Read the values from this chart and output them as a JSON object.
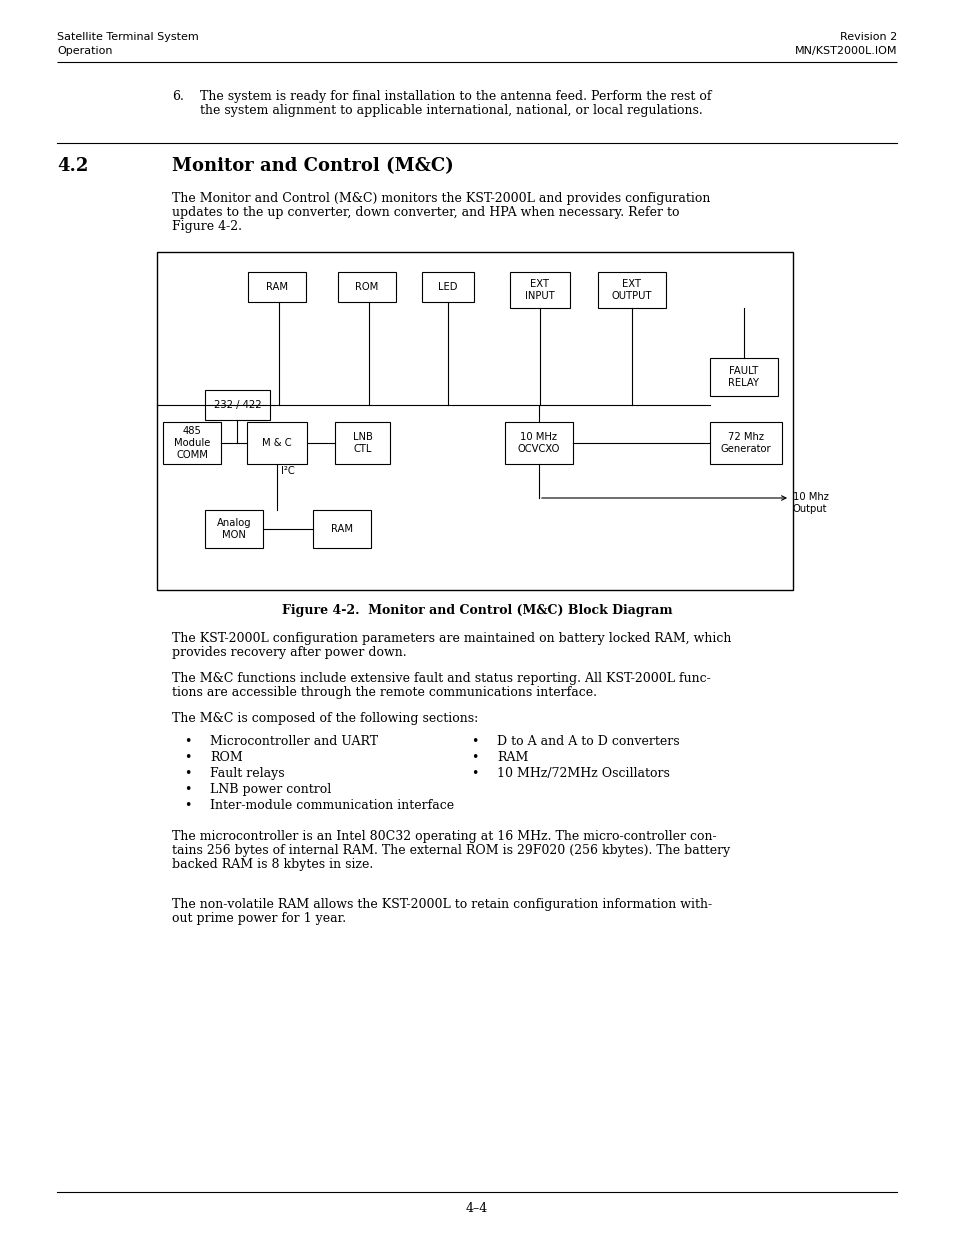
{
  "header_left_line1": "Satellite Terminal System",
  "header_left_line2": "Operation",
  "header_right_line1": "Revision 2",
  "header_right_line2": "MN/KST2000L.IOM",
  "section_num": "4.2",
  "section_title": "Monitor and Control (M&C)",
  "intro_text_1": "The Monitor and Control (M&C) monitors the KST-2000L and provides configuration",
  "intro_text_2": "updates to the up converter, down converter, and HPA when necessary. Refer to",
  "intro_text_3": "Figure 4-2.",
  "fig_caption": "Figure 4-2.  Monitor and Control (M&C) Block Diagram",
  "item6_line1": "The system is ready for final installation to the antenna feed. Perform the rest of",
  "item6_line2": "the system alignment to applicable international, national, or local regulations.",
  "para1_1": "The KST-2000L configuration parameters are maintained on battery locked RAM, which",
  "para1_2": "provides recovery after power down.",
  "para2_1": "The M&C functions include extensive fault and status reporting. All KST-2000L func-",
  "para2_2": "tions are accessible through the remote communications interface.",
  "para3": "The M&C is composed of the following sections:",
  "bullets_left": [
    "Microcontroller and UART",
    "ROM",
    "Fault relays",
    "LNB power control",
    "Inter-module communication interface"
  ],
  "bullets_right": [
    "D to A and A to D converters",
    "RAM",
    "10 MHz/72MHz Oscillators"
  ],
  "para4_1": "The microcontroller is an Intel 80C32 operating at 16 MHz. The micro-controller con-",
  "para4_2": "tains 256 bytes of internal RAM. The external ROM is 29F020 (256 kbytes). The battery",
  "para4_3": "backed RAM is 8 kbytes in size.",
  "para5_1": "The non-volatile RAM allows the KST-2000L to retain configuration information with-",
  "para5_2": "out prime power for 1 year.",
  "footer_text": "4–4",
  "bg_color": "#ffffff"
}
